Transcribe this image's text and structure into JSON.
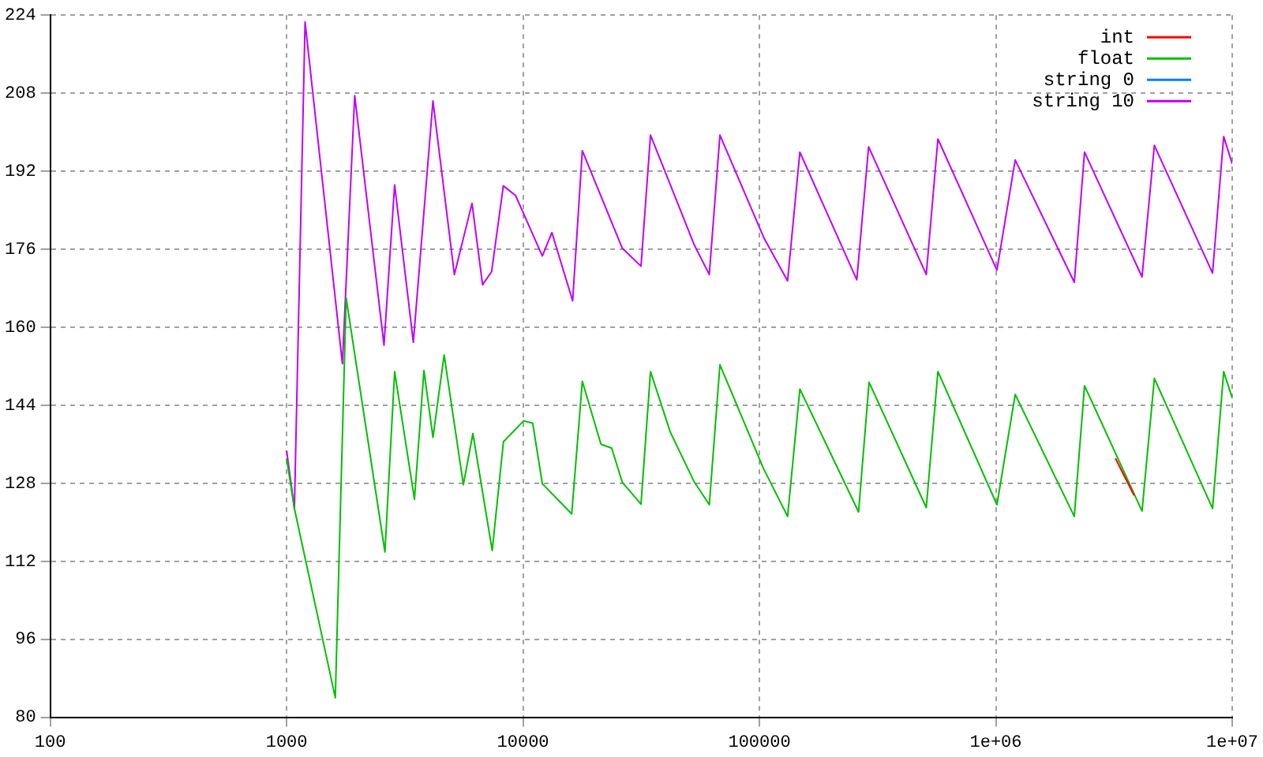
{
  "chart_data": {
    "type": "line",
    "log": "x",
    "grid": true,
    "legend": "top right",
    "marker": "none",
    "line_style": "solid",
    "xlim": [
      100,
      10000000
    ],
    "xticks": [
      100,
      1000,
      10000,
      100000,
      {
        "value": 1000000,
        "label": "1e+06"
      },
      {
        "value": 10000000,
        "label": "1e+07"
      }
    ],
    "ylim": [
      80,
      224
    ],
    "yticks": [
      80,
      96,
      112,
      128,
      144,
      160,
      176,
      192,
      208,
      224
    ],
    "series": [
      {
        "name": "int",
        "color": "#ff0000",
        "x": [
          3206000,
          3845000
        ],
        "values": [
          133.1,
          125.5
        ]
      },
      {
        "name": "float",
        "color": "#00c000",
        "x": [
          1000,
          1079,
          1607,
          1786,
          2606,
          2864,
          3474,
          3810,
          4160,
          4638,
          5594,
          6138,
          7410,
          8263,
          10070,
          10990,
          12070,
          16070,
          17820,
          21360,
          23080,
          23710,
          26300,
          31560,
          34620,
          41960,
          53100,
          61380,
          68080,
          104300,
          131600,
          148300,
          262700,
          291000,
          508000,
          569000,
          1011000,
          1208000,
          2148000,
          2373000,
          4155000,
          4685000,
          8258000,
          9204000,
          10000000
        ],
        "values": [
          133.1,
          122.8,
          84.0,
          166.0,
          113.9,
          150.9,
          124.7,
          151.1,
          137.4,
          154.3,
          127.7,
          138.2,
          114.2,
          136.5,
          140.8,
          140.3,
          127.9,
          121.7,
          148.9,
          136.0,
          135.4,
          135.2,
          128.2,
          123.7,
          150.9,
          138.5,
          128.2,
          123.6,
          152.3,
          130.9,
          121.2,
          147.3,
          122.1,
          148.7,
          123.0,
          150.9,
          123.6,
          146.2,
          121.2,
          148.0,
          122.3,
          149.5,
          122.8,
          150.9,
          145.5
        ]
      },
      {
        "name": "string 0",
        "color": "#0080ff"
      },
      {
        "name": "string 10",
        "color": "#c000ff",
        "x": [
          1000,
          1079,
          1197,
          1722,
          1941,
          2582,
          2864,
          3436,
          4160,
          5125,
          6086,
          6745,
          7366,
          8257,
          9305,
          12070,
          13250,
          16220,
          17820,
          26300,
          31560,
          34620,
          53100,
          61380,
          68080,
          104300,
          131600,
          148300,
          258200,
          289700,
          508000,
          569000,
          1011000,
          1208000,
          2148000,
          2373000,
          4155000,
          4685000,
          8258000,
          9204000,
          10000000
        ],
        "values": [
          134.7,
          122.8,
          222.6,
          152.5,
          207.5,
          156.3,
          189.2,
          156.9,
          206.4,
          170.8,
          185.4,
          168.7,
          171.4,
          189.0,
          187.0,
          174.6,
          179.4,
          165.4,
          196.2,
          176.2,
          172.5,
          199.4,
          176.8,
          170.8,
          199.4,
          178.4,
          169.5,
          195.9,
          169.7,
          197.0,
          170.8,
          198.6,
          171.7,
          194.3,
          169.2,
          195.9,
          170.3,
          197.3,
          171.1,
          199.1,
          193.5
        ]
      }
    ]
  }
}
